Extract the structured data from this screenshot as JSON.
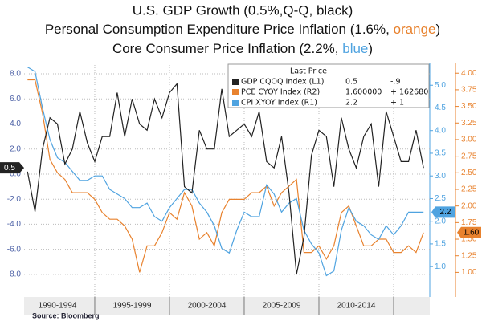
{
  "chart_data": {
    "type": "line",
    "title": "U.S. GDP Growth  (0.5%,Q-Q,  black)",
    "subtitle_parts": [
      "Personal Consumption Expenditure Price Inflation (1.6%, ",
      "orange",
      ")"
    ],
    "subtitle2_parts": [
      "Core Consumer Price  Inflation (2.2%, ",
      "blue",
      ")"
    ],
    "source": "Source: Bloomberg",
    "legend_header": "Last Price",
    "xlim": [
      1990.27,
      2017.42
    ],
    "xticks": [
      1995,
      2000,
      2005,
      2010,
      2015
    ],
    "period_labels": [
      {
        "value": 1992.5,
        "label": "1990-1994"
      },
      {
        "value": 1997.5,
        "label": "1995-1999"
      },
      {
        "value": 2002.5,
        "label": "2000-2004"
      },
      {
        "value": 2007.5,
        "label": "2005-2009"
      },
      {
        "value": 2012.5,
        "label": "2010-2014"
      }
    ],
    "ylim": [
      -9.8,
      8.9
    ],
    "yticks": [
      {
        "value": 8,
        "label": "8.0"
      },
      {
        "value": 6,
        "label": "6.0"
      },
      {
        "value": 4,
        "label": "4.0"
      },
      {
        "value": 2,
        "label": "2.0"
      },
      {
        "value": 0,
        "label": "0.0"
      },
      {
        "value": -2,
        "label": "-2.0"
      },
      {
        "value": -4,
        "label": "-4.0"
      },
      {
        "value": -6,
        "label": "-6.0"
      },
      {
        "value": -8,
        "label": "-8.0"
      }
    ],
    "y2lim": [
      0.33,
      5.5
    ],
    "y2ticks": [
      {
        "value": 5,
        "label": "5.0"
      },
      {
        "value": 4.5,
        "label": "4.5"
      },
      {
        "value": 4,
        "label": "4.0"
      },
      {
        "value": 3.5,
        "label": "3.5"
      },
      {
        "value": 3,
        "label": "3.0"
      },
      {
        "value": 2.5,
        "label": "2.5"
      },
      {
        "value": 2,
        "label": "2.0"
      },
      {
        "value": 1.5,
        "label": "1.5"
      },
      {
        "value": 1,
        "label": "1.0"
      }
    ],
    "y3lim": [
      0.63,
      4.16
    ],
    "y3ticks": [
      {
        "value": 4,
        "label": "4.00"
      },
      {
        "value": 3.75,
        "label": "3.75"
      },
      {
        "value": 3.5,
        "label": "3.50"
      },
      {
        "value": 3.25,
        "label": "3.25"
      },
      {
        "value": 3,
        "label": "3.00"
      },
      {
        "value": 2.75,
        "label": "2.75"
      },
      {
        "value": 2.5,
        "label": "2.50"
      },
      {
        "value": 2.25,
        "label": "2.25"
      },
      {
        "value": 2,
        "label": "2.00"
      },
      {
        "value": 1.75,
        "label": "1.75"
      },
      {
        "value": 1.5,
        "label": "1.50"
      },
      {
        "value": 1.25,
        "label": "1.25"
      },
      {
        "value": 1,
        "label": "1.00"
      }
    ],
    "grid": true,
    "x": [
      1990.5,
      1991.0,
      1991.5,
      1992.0,
      1992.5,
      1993.0,
      1993.5,
      1994.0,
      1994.5,
      1995.0,
      1995.5,
      1996.0,
      1996.5,
      1997.0,
      1997.5,
      1998.0,
      1998.5,
      1999.0,
      1999.5,
      2000.0,
      2000.5,
      2001.0,
      2001.5,
      2002.0,
      2002.5,
      2003.0,
      2003.5,
      2004.0,
      2004.5,
      2005.0,
      2005.5,
      2006.0,
      2006.5,
      2007.0,
      2007.5,
      2008.0,
      2008.5,
      2009.0,
      2009.5,
      2010.0,
      2010.5,
      2011.0,
      2011.5,
      2012.0,
      2012.5,
      2013.0,
      2013.5,
      2014.0,
      2014.5,
      2015.0,
      2015.5,
      2016.0,
      2016.5,
      2017.0
    ],
    "series": [
      {
        "name": "GDP CQOQ Index  (L1)",
        "last": "0.5",
        "change": "-.9",
        "tag": "0.5",
        "color": "#222222",
        "axis": "y",
        "values": [
          0.2,
          -3.0,
          2.0,
          4.5,
          4.0,
          0.8,
          2.0,
          5.0,
          2.5,
          1.0,
          3.0,
          3.0,
          6.5,
          3.0,
          6.0,
          4.0,
          3.5,
          6.0,
          4.5,
          6.5,
          7.2,
          -1.0,
          -1.5,
          3.5,
          2.0,
          2.0,
          6.8,
          3.0,
          3.5,
          4.0,
          3.0,
          5.0,
          1.0,
          0.5,
          3.0,
          -1.5,
          -8.0,
          -5.0,
          1.5,
          3.5,
          3.0,
          -1.0,
          4.5,
          2.0,
          0.5,
          3.0,
          4.0,
          -1.0,
          5.0,
          3.0,
          1.0,
          1.0,
          3.5,
          0.5
        ]
      },
      {
        "name": "PCE CYOY Index  (R2)",
        "last": "1.600000",
        "change": "+.162680",
        "tag": "1.60",
        "color": "#e8822e",
        "axis": "y3",
        "values": [
          3.9,
          3.9,
          3.4,
          2.7,
          2.5,
          2.4,
          2.2,
          2.2,
          2.2,
          2.1,
          1.9,
          1.8,
          1.8,
          1.7,
          1.5,
          1.0,
          1.4,
          1.4,
          1.6,
          1.9,
          1.8,
          2.2,
          2.0,
          1.5,
          1.6,
          1.4,
          1.9,
          2.1,
          2.1,
          2.1,
          2.2,
          2.2,
          2.3,
          2.0,
          2.2,
          2.3,
          2.4,
          1.3,
          1.3,
          1.4,
          1.2,
          1.4,
          1.9,
          2.0,
          1.7,
          1.4,
          1.4,
          1.5,
          1.5,
          1.3,
          1.3,
          1.4,
          1.3,
          1.6
        ]
      },
      {
        "name": "CPI XYOY Index  (R1)",
        "last": "2.2",
        "change": "+.1",
        "tag": "2.2",
        "color": "#4fa3e0",
        "axis": "y2",
        "values": [
          5.4,
          5.3,
          4.5,
          3.8,
          3.4,
          3.3,
          3.1,
          2.9,
          2.9,
          3.0,
          3.0,
          2.7,
          2.6,
          2.5,
          2.3,
          2.3,
          2.4,
          2.1,
          2.0,
          2.3,
          2.5,
          2.7,
          2.7,
          2.4,
          2.2,
          1.9,
          1.4,
          1.3,
          1.8,
          2.2,
          2.1,
          2.1,
          2.8,
          2.6,
          2.2,
          2.4,
          2.5,
          1.8,
          1.5,
          1.3,
          0.8,
          0.9,
          1.8,
          2.3,
          2.0,
          1.9,
          1.7,
          1.6,
          1.9,
          1.7,
          1.9,
          2.2,
          2.2,
          2.2
        ]
      }
    ]
  }
}
